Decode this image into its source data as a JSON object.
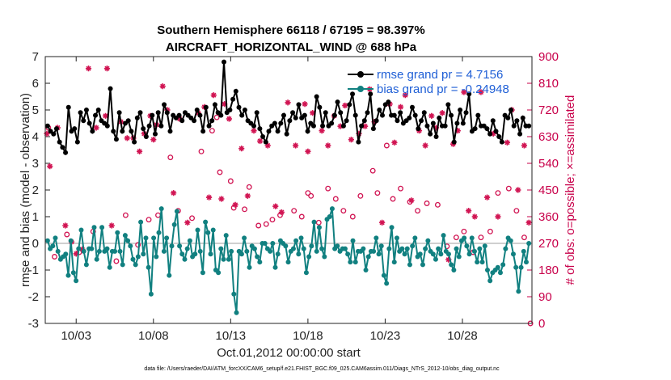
{
  "chart_data": {
    "type": "line",
    "title": "Southern Hemisphere 66118 / 67195 = 98.397%",
    "subtitle": "AIRCRAFT_HORIZONTAL_WIND @ 688 hPa",
    "xlabel": "Oct.01,2012 00:00:00 start",
    "ylabel": "rmse and bias (model - observation)",
    "ylabel_right": "# of obs: o=possible; ×=assimilated",
    "footer": "data file: /Users/raeder/DAI/ATM_forcXX/CAM6_setup/f.e21.FHIST_BGC.f09_025.CAM6assim.011/Diags_NTrS_2012-10/obs_diag_output.nc",
    "xlim": [
      1.0,
      32.5
    ],
    "ylim": [
      -3,
      7
    ],
    "ylim_right": [
      0,
      900
    ],
    "x_ticks": [
      3,
      8,
      13,
      18,
      23,
      28
    ],
    "x_tick_labels": [
      "10/03",
      "10/08",
      "10/13",
      "10/18",
      "10/23",
      "10/28"
    ],
    "y_ticks": [
      -3,
      -2,
      -1,
      0,
      1,
      2,
      3,
      4,
      5,
      6,
      7
    ],
    "y_tick_labels": [
      "-3",
      "-2",
      "-1",
      "0",
      "1",
      "2",
      "3",
      "4",
      "5",
      "6",
      "7"
    ],
    "y_right_ticks": [
      0,
      90,
      180,
      270,
      360,
      450,
      540,
      630,
      720,
      810,
      900
    ],
    "y_right_tick_labels": [
      "0",
      "90",
      "180",
      "270",
      "360",
      "450",
      "540",
      "630",
      "720",
      "810",
      "900"
    ],
    "grid": false,
    "legend_position": "top-right",
    "series": [
      {
        "name": "rmse grand pr = 4.7156",
        "color": "#000000",
        "axis": "left",
        "values": [
          4.4,
          4.2,
          4.1,
          4.3,
          3.8,
          3.6,
          3.4,
          5.1,
          4.2,
          4.3,
          3.8,
          4.9,
          4.6,
          5.0,
          4.5,
          4.2,
          4.8,
          5.0,
          4.6,
          4.5,
          4.4,
          5.8,
          4.2,
          3.9,
          4.9,
          4.2,
          4.5,
          4.6,
          4.2,
          3.8,
          4.7,
          4.9,
          4.3,
          4.0,
          4.4,
          4.8,
          4.1,
          4.9,
          4.4,
          5.2,
          4.9,
          4.2,
          4.8,
          4.7,
          4.8,
          4.6,
          4.9,
          4.8,
          4.7,
          4.6,
          5.0,
          4.8,
          4.2,
          5.1,
          4.4,
          4.6,
          5.2,
          4.9,
          4.8,
          6.8,
          4.9,
          5.0,
          5.4,
          5.7,
          5.1,
          4.8,
          5.0,
          4.6,
          4.5,
          4.4,
          4.9,
          4.3,
          4.0,
          3.8,
          4.2,
          4.4,
          4.5,
          4.2,
          4.5,
          4.8,
          4.1,
          4.6,
          4.9,
          4.7,
          5.2,
          4.7,
          4.8,
          4.2,
          4.5,
          4.4,
          5.5,
          5.1,
          4.4,
          4.9,
          4.4,
          4.5,
          4.8,
          5.3,
          4.9,
          4.4,
          4.6,
          5.2,
          5.6,
          4.8,
          3.8,
          4.4,
          4.6,
          4.9,
          5.6,
          4.3,
          4.6,
          5.0,
          4.8,
          5.2,
          5.3,
          4.8,
          4.8,
          4.6,
          4.9,
          4.5,
          4.6,
          4.7,
          5.1,
          4.8,
          4.3,
          4.6,
          4.9,
          4.4,
          4.1,
          4.5,
          4.0,
          4.7,
          4.4,
          4.4,
          5.2,
          4.8,
          3.8,
          4.5,
          5.0,
          4.5,
          4.9,
          5.6,
          4.2,
          4.3,
          4.8,
          4.4,
          4.4,
          4.3,
          4.1,
          4.6,
          4.2,
          4.0,
          3.8,
          4.8,
          4.7,
          5.0,
          4.4,
          4.6,
          4.1,
          4.7,
          4.4,
          4.4
        ]
      },
      {
        "name": "bias grand pr = -0.24948",
        "color": "#118080",
        "axis": "left",
        "values": [
          0.1,
          -0.2,
          -0.1,
          0.2,
          -0.3,
          -0.6,
          -0.5,
          -0.4,
          -1.2,
          0.1,
          -1.1,
          -1.4,
          -0.2,
          0.5,
          -0.3,
          -0.8,
          -0.2,
          -0.2,
          0.6,
          -0.6,
          -0.3,
          0.6,
          -0.3,
          -0.2,
          -0.9,
          -0.3,
          -0.3,
          0.4,
          -0.3,
          -0.8,
          0.3,
          0.1,
          -0.1,
          -0.6,
          -0.8,
          -0.5,
          0.8,
          -0.4,
          0.2,
          -0.9,
          -1.9,
          0.2,
          -0.5,
          0.4,
          1.3,
          -0.3,
          0.2,
          -1.2,
          -0.1,
          0.7,
          1.2,
          -0.1,
          -0.4,
          -0.6,
          -0.2,
          0.1,
          -0.5,
          -0.4,
          0.5,
          -0.3,
          -1.1,
          0.8,
          0.4,
          -0.4,
          0.5,
          -1.0,
          -1.1,
          -0.2,
          -0.6,
          0.3,
          -0.6,
          -0.3,
          -1.9,
          -2.6,
          -0.3,
          -0.4,
          0.2,
          -0.3,
          -0.9,
          -0.1,
          -0.2,
          -0.5,
          -0.7,
          0.0,
          0.0,
          -0.2,
          -0.3,
          0.0,
          -0.9,
          -0.4,
          0.1,
          0.0,
          -0.1,
          -0.7,
          -0.3,
          -0.2,
          0.1,
          -0.4,
          0.2,
          -0.2,
          -1.1,
          -0.5,
          -0.1,
          0.8,
          -0.3,
          0.6,
          -0.2,
          -0.5,
          0.9,
          1.0,
          1.3,
          -0.2,
          -0.1,
          -0.3,
          -0.2,
          -0.2,
          -0.4,
          -0.7,
          0.1,
          -0.7,
          -0.3,
          -0.3,
          -0.2,
          -1.0,
          -0.5,
          -0.3,
          -0.3,
          0.2,
          -0.4,
          -0.1,
          -1.2,
          -1.5,
          -0.2,
          0.6,
          -0.7,
          0.2,
          -0.3,
          -0.2,
          -0.4,
          -0.2,
          -0.8,
          -0.1,
          0.2,
          -0.5,
          -0.4,
          -0.8,
          -0.2,
          0.1,
          -0.3,
          -0.4,
          -0.6,
          -0.2,
          -0.4,
          0.3,
          -0.3,
          -0.4,
          -0.8,
          -1.0,
          -0.2,
          -0.5,
          0.1,
          0.2,
          -0.1,
          -0.4,
          0.2,
          -0.3,
          -0.7,
          -0.2,
          -0.7,
          -0.1,
          -1.0,
          -1.4,
          -1.1,
          -1.0,
          -0.9,
          -1.1,
          -0.8,
          -0.2,
          0.2,
          0.1,
          -0.4,
          -0.9,
          -1.8,
          -0.9,
          -0.3,
          -0.7,
          0.0
        ]
      }
    ],
    "obs_possible": {
      "marker": "o",
      "color": "#d11553",
      "axis": "right",
      "points": [
        [
          1.2,
          660
        ],
        [
          1.6,
          225
        ],
        [
          2.4,
          300
        ],
        [
          3.2,
          240
        ],
        [
          4.1,
          310
        ],
        [
          5.6,
          210
        ],
        [
          6.2,
          365
        ],
        [
          7.0,
          265
        ],
        [
          7.7,
          350
        ],
        [
          8.3,
          365
        ],
        [
          9.1,
          560
        ],
        [
          9.6,
          380
        ],
        [
          10.5,
          355
        ],
        [
          11.1,
          580
        ],
        [
          11.8,
          650
        ],
        [
          12.1,
          695
        ],
        [
          12.3,
          510
        ],
        [
          13.0,
          480
        ],
        [
          13.2,
          390
        ],
        [
          13.9,
          385
        ],
        [
          14.2,
          460
        ],
        [
          14.8,
          330
        ],
        [
          15.3,
          335
        ],
        [
          15.7,
          350
        ],
        [
          16.2,
          365
        ],
        [
          17.1,
          380
        ],
        [
          17.6,
          360
        ],
        [
          18.0,
          440
        ],
        [
          18.2,
          430
        ],
        [
          18.7,
          340
        ],
        [
          19.3,
          455
        ],
        [
          19.8,
          420
        ],
        [
          20.3,
          380
        ],
        [
          20.9,
          360
        ],
        [
          21.4,
          430
        ],
        [
          22.2,
          515
        ],
        [
          22.5,
          440
        ],
        [
          23.1,
          600
        ],
        [
          23.5,
          420
        ],
        [
          24.0,
          455
        ],
        [
          24.6,
          410
        ],
        [
          25.1,
          380
        ],
        [
          25.7,
          405
        ],
        [
          26.4,
          400
        ],
        [
          27.0,
          260
        ],
        [
          27.6,
          290
        ],
        [
          28.1,
          310
        ],
        [
          28.7,
          240
        ],
        [
          29.2,
          290
        ],
        [
          29.8,
          310
        ],
        [
          30.3,
          440
        ],
        [
          31.0,
          455
        ],
        [
          31.5,
          380
        ],
        [
          32.0,
          290
        ],
        [
          32.4,
          0
        ]
      ]
    },
    "obs_assimilated": {
      "marker": "*",
      "color": "#d11553",
      "axis": "right",
      "points": [
        [
          1.1,
          640
        ],
        [
          1.3,
          530
        ],
        [
          1.8,
          660
        ],
        [
          2.3,
          330
        ],
        [
          2.7,
          275
        ],
        [
          3.0,
          235
        ],
        [
          3.4,
          250
        ],
        [
          3.8,
          860
        ],
        [
          4.3,
          660
        ],
        [
          4.9,
          700
        ],
        [
          5.0,
          860
        ],
        [
          5.3,
          330
        ],
        [
          5.9,
          680
        ],
        [
          6.3,
          625
        ],
        [
          6.7,
          625
        ],
        [
          7.1,
          580
        ],
        [
          7.4,
          640
        ],
        [
          7.8,
          700
        ],
        [
          8.0,
          620
        ],
        [
          8.2,
          670
        ],
        [
          8.6,
          800
        ],
        [
          8.9,
          720
        ],
        [
          9.3,
          440
        ],
        [
          9.7,
          690
        ],
        [
          10.2,
          340
        ],
        [
          10.9,
          710
        ],
        [
          11.3,
          730
        ],
        [
          11.6,
          425
        ],
        [
          11.9,
          770
        ],
        [
          12.4,
          420
        ],
        [
          12.6,
          740
        ],
        [
          12.9,
          690
        ],
        [
          13.3,
          400
        ],
        [
          13.7,
          590
        ],
        [
          14.1,
          430
        ],
        [
          14.5,
          650
        ],
        [
          14.9,
          615
        ],
        [
          15.4,
          600
        ],
        [
          15.9,
          395
        ],
        [
          16.3,
          375
        ],
        [
          16.7,
          745
        ],
        [
          17.2,
          600
        ],
        [
          17.8,
          740
        ],
        [
          18.0,
          580
        ],
        [
          18.3,
          710
        ],
        [
          18.9,
          650
        ],
        [
          19.3,
          600
        ],
        [
          19.7,
          700
        ],
        [
          20.1,
          665
        ],
        [
          20.4,
          735
        ],
        [
          20.8,
          620
        ],
        [
          21.3,
          640
        ],
        [
          21.7,
          665
        ],
        [
          22.0,
          790
        ],
        [
          22.3,
          680
        ],
        [
          22.8,
          340
        ],
        [
          23.3,
          740
        ],
        [
          23.6,
          610
        ],
        [
          24.0,
          730
        ],
        [
          24.3,
          770
        ],
        [
          24.7,
          415
        ],
        [
          25.2,
          650
        ],
        [
          25.6,
          600
        ],
        [
          26.0,
          700
        ],
        [
          26.3,
          660
        ],
        [
          26.7,
          710
        ],
        [
          27.1,
          215
        ],
        [
          27.4,
          605
        ],
        [
          27.7,
          650
        ],
        [
          28.1,
          780
        ],
        [
          28.4,
          380
        ],
        [
          28.8,
          360
        ],
        [
          29.2,
          780
        ],
        [
          29.6,
          425
        ],
        [
          30.0,
          640
        ],
        [
          30.3,
          360
        ],
        [
          30.9,
          610
        ],
        [
          31.2,
          720
        ],
        [
          31.6,
          450
        ],
        [
          32.0,
          600
        ],
        [
          32.3,
          340
        ]
      ]
    }
  }
}
